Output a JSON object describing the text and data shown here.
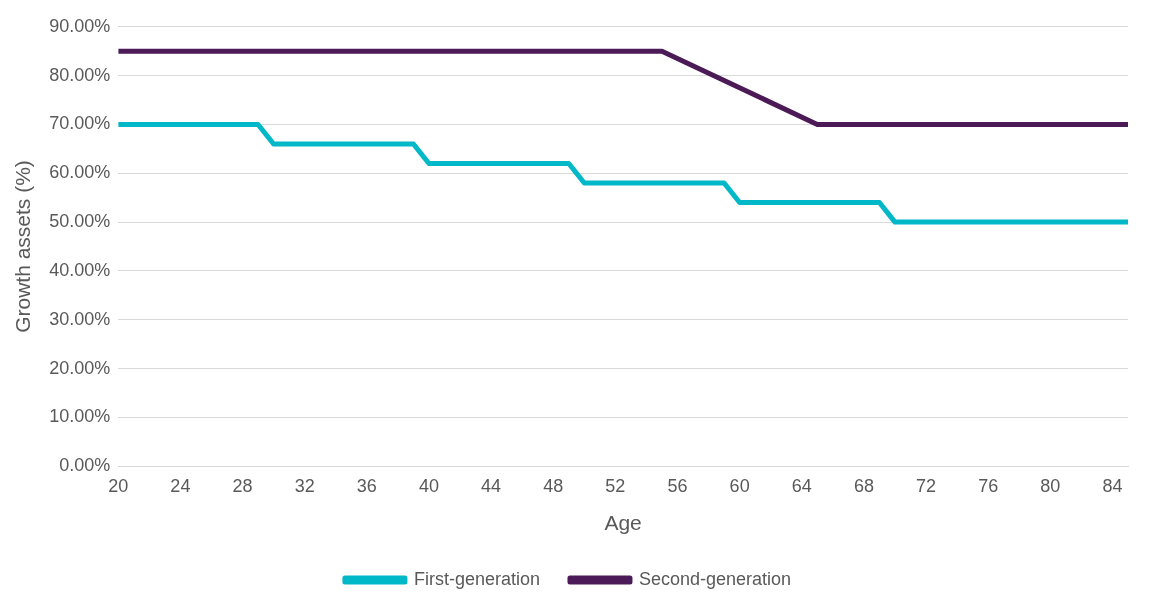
{
  "chart_data": {
    "type": "line",
    "xlabel": "Age",
    "ylabel": "Growth assets (%)",
    "xlim": [
      20,
      85
    ],
    "xticks": [
      20,
      24,
      28,
      32,
      36,
      40,
      44,
      48,
      52,
      56,
      60,
      64,
      68,
      72,
      76,
      80,
      84
    ],
    "ylim": [
      0,
      90
    ],
    "yticks": [
      {
        "value": 0,
        "label": "0.00%"
      },
      {
        "value": 10,
        "label": "10.00%"
      },
      {
        "value": 20,
        "label": "20.00%"
      },
      {
        "value": 30,
        "label": "30.00%"
      },
      {
        "value": 40,
        "label": "40.00%"
      },
      {
        "value": 50,
        "label": "50.00%"
      },
      {
        "value": 60,
        "label": "60.00%"
      },
      {
        "value": 70,
        "label": "70.00%"
      },
      {
        "value": 80,
        "label": "80.00%"
      },
      {
        "value": 90,
        "label": "90.00%"
      }
    ],
    "grid": "y",
    "legend": "bottom",
    "marker": "none",
    "line_style": "solid",
    "series": [
      {
        "name": "First-generation",
        "color": "#00b8c8",
        "x": [
          20,
          29,
          30,
          39,
          40,
          49,
          50,
          59,
          60,
          69,
          70,
          85
        ],
        "values": [
          70,
          70,
          66,
          66,
          62,
          62,
          58,
          58,
          54,
          54,
          50,
          50
        ]
      },
      {
        "name": "Second-generation",
        "color": "#4b1a57",
        "x": [
          20,
          55,
          65,
          85
        ],
        "values": [
          85,
          85,
          70,
          70
        ]
      }
    ]
  }
}
